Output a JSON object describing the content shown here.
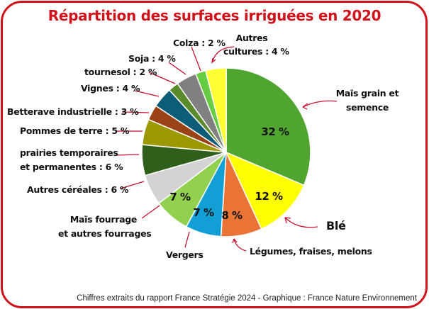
{
  "title": "Répartition des surfaces irriguées en 2020",
  "footer": "Chiffres extraits du rapport France Stratégie 2024  - Graphique : France Nature Environnement",
  "colors": {
    "accent": "#d0121b"
  },
  "chart_data": {
    "type": "pie",
    "title": "Répartition des surfaces irriguées en 2020",
    "unit": "%",
    "start": "12 o'clock, clockwise",
    "categories": [
      "Maïs grain et semence",
      "Blé",
      "Légumes, fraises, melons",
      "Vergers",
      "Maïs fourrage et autres fourrages",
      "Autres céréales",
      "prairies temporaires et permanentes",
      "Pommes de terre",
      "Betterave industrielle",
      "Vignes",
      "tournesol",
      "Soja",
      "Colza",
      "Autres cultures"
    ],
    "values": [
      32,
      12,
      8,
      7,
      7,
      6,
      6,
      5,
      3,
      4,
      2,
      4,
      2,
      4
    ],
    "colors": [
      "#4fa52f",
      "#ffff00",
      "#ea7436",
      "#129fd6",
      "#92d050",
      "#d3d3d3",
      "#2f5f1b",
      "#9c9900",
      "#9b4216",
      "#0d5c78",
      "#5a8a2a",
      "#808080",
      "#66cc44",
      "#ffff33"
    ]
  },
  "labels": {
    "mais_grain": [
      "Maïs grain et",
      "semence"
    ],
    "mais_grain_pct": "32 %",
    "ble": "Blé",
    "ble_pct": "12 %",
    "legumes": "Légumes, fraises, melons",
    "legumes_pct": "8 %",
    "vergers": "Vergers",
    "vergers_pct": "7 %",
    "mais_fourrage": [
      "Maïs fourrage",
      "et autres fourrages"
    ],
    "mais_fourrage_pct": "7 %",
    "autres_cereales": "Autres céréales : 6 %",
    "prairies": [
      "prairies temporaires",
      "et permanentes : 6 %"
    ],
    "pommes_de_terre": "Pommes de terre : 5 %",
    "betterave": "Betterave industrielle : 3 %",
    "vignes": "Vignes : 4 %",
    "tournesol": "tournesol : 2 %",
    "soja": "Soja : 4 %",
    "colza": "Colza : 2 %",
    "autres_cultures": [
      "Autres",
      "cultures : 4 %"
    ]
  }
}
